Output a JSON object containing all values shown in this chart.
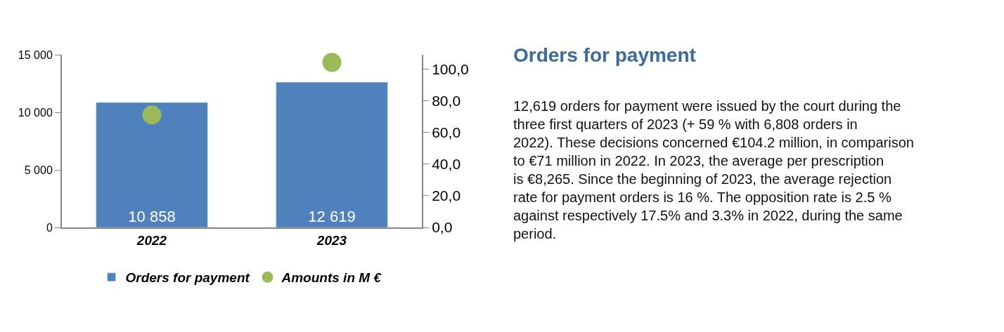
{
  "chart_data": {
    "type": "bar",
    "title": "Orders for payment",
    "categories": [
      "2022",
      "2023"
    ],
    "series": [
      {
        "name": "Orders for payment",
        "color": "#4f81bd",
        "values": [
          10858,
          12619
        ],
        "value_labels": [
          "10 858",
          "12 619"
        ]
      },
      {
        "name": "Amounts in M €",
        "type": "scatter",
        "axis": "y2",
        "color": "#9bbb59",
        "values": [
          71,
          104.2
        ]
      }
    ],
    "ylim": [
      0,
      15000
    ],
    "yticks": [
      {
        "value": 0,
        "label": "0"
      },
      {
        "value": 5000,
        "label": "5 000"
      },
      {
        "value": 10000,
        "label": "10 000"
      },
      {
        "value": 15000,
        "label": "15 000"
      }
    ],
    "y2lim": [
      0,
      109
    ],
    "y2ticks": [
      {
        "value": 0,
        "label": "0,0"
      },
      {
        "value": 20,
        "label": "20,0"
      },
      {
        "value": 40,
        "label": "40,0"
      },
      {
        "value": 60,
        "label": "60,0"
      },
      {
        "value": 80,
        "label": "80,0"
      },
      {
        "value": 100,
        "label": "100,0"
      }
    ],
    "marker": "circle",
    "legend": "bottom",
    "annotations": [
      "12,619 orders for payment were issued by the court during the three first quarters of 2023 (+ 59 % with 6,808 orders in 2022). These decisions concerned €104.2 million, in comparison to €71 million in 2022. In 2023, the average per prescription is €8,265. Since the beginning of 2023, the average rejection rate for payment orders is 16 %. The opposition rate is 2.5 % against respectively 17.5% and 3.3% in 2022, during the same period."
    ]
  }
}
